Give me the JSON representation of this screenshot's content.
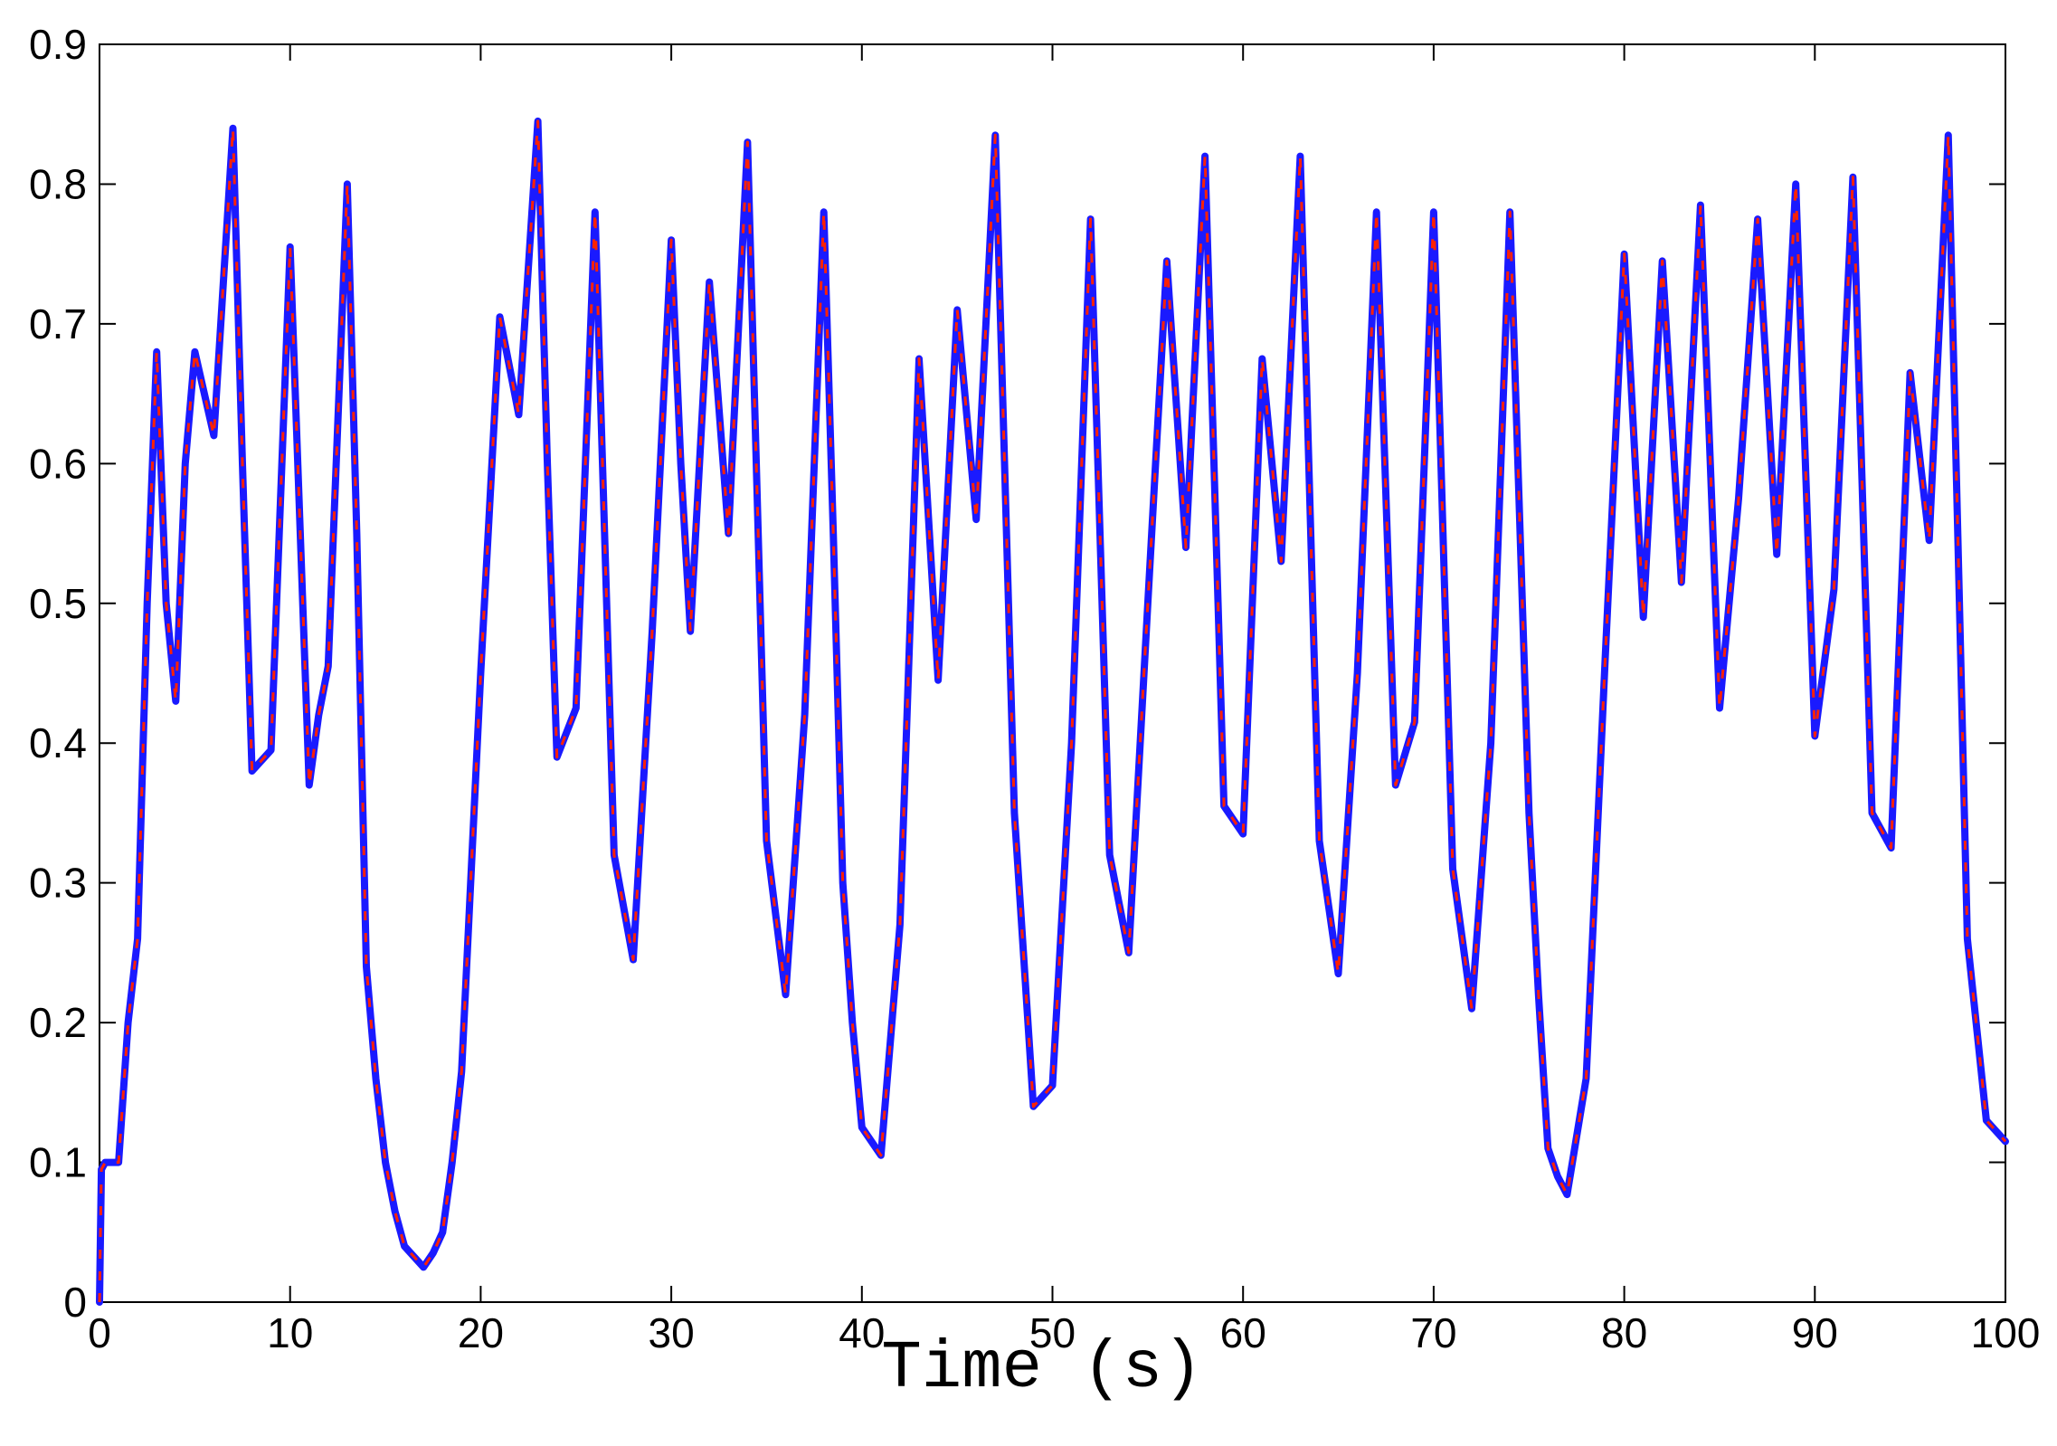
{
  "chart_data": {
    "type": "line",
    "title": "",
    "xlabel": "Time (s)",
    "ylabel": "",
    "xlim": [
      0,
      100
    ],
    "ylim": [
      0,
      0.9
    ],
    "grid": false,
    "legend": "none",
    "x_ticks": [
      "0",
      "10",
      "20",
      "30",
      "40",
      "50",
      "60",
      "70",
      "80",
      "90",
      "100"
    ],
    "y_ticks": [
      "0",
      "0.1",
      "0.2",
      "0.3",
      "0.4",
      "0.5",
      "0.6",
      "0.7",
      "0.8",
      "0.9"
    ],
    "colors": {
      "series_solid": "#1a1aff",
      "series_dashed": "#ff2200",
      "axes": "#000000",
      "background": "#ffffff"
    },
    "x": [
      0,
      0.1,
      0.3,
      1,
      1.5,
      2,
      2.5,
      3,
      3.5,
      4,
      4.5,
      5,
      6,
      7,
      7.5,
      8,
      9,
      10,
      11,
      11.5,
      12,
      13,
      13.5,
      14,
      14.5,
      15,
      15.5,
      16,
      17,
      17.5,
      18,
      18.5,
      19,
      20,
      21,
      22,
      23,
      23.5,
      24,
      25,
      26,
      27,
      28,
      29,
      30,
      30.5,
      31,
      32,
      33,
      34,
      35,
      36,
      37,
      38,
      38.5,
      39,
      39.5,
      40,
      41,
      42,
      43,
      44,
      45,
      46,
      47,
      48,
      49,
      50,
      51,
      52,
      53,
      54,
      55,
      56,
      57,
      58,
      59,
      60,
      61,
      62,
      63,
      64,
      65,
      66,
      67,
      68,
      69,
      70,
      71,
      72,
      73,
      74,
      75,
      75.5,
      76,
      76.5,
      77,
      78,
      79,
      80,
      81,
      82,
      83,
      84,
      85,
      86,
      87,
      88,
      89,
      90,
      91,
      92,
      93,
      94,
      95,
      96,
      97,
      97.5,
      98,
      99,
      100
    ],
    "series": [
      {
        "values": [
          0,
          0.095,
          0.1,
          0.1,
          0.2,
          0.26,
          0.5,
          0.68,
          0.5,
          0.43,
          0.6,
          0.68,
          0.62,
          0.84,
          0.6,
          0.38,
          0.395,
          0.755,
          0.37,
          0.42,
          0.455,
          0.8,
          0.55,
          0.24,
          0.16,
          0.1,
          0.065,
          0.04,
          0.025,
          0.035,
          0.05,
          0.1,
          0.165,
          0.45,
          0.705,
          0.635,
          0.845,
          0.6,
          0.39,
          0.425,
          0.78,
          0.32,
          0.245,
          0.48,
          0.76,
          0.6,
          0.48,
          0.73,
          0.55,
          0.83,
          0.33,
          0.22,
          0.42,
          0.78,
          0.55,
          0.3,
          0.2,
          0.125,
          0.105,
          0.27,
          0.675,
          0.445,
          0.71,
          0.56,
          0.835,
          0.35,
          0.14,
          0.155,
          0.4,
          0.775,
          0.32,
          0.25,
          0.5,
          0.745,
          0.54,
          0.82,
          0.355,
          0.335,
          0.675,
          0.53,
          0.82,
          0.33,
          0.235,
          0.45,
          0.78,
          0.37,
          0.415,
          0.78,
          0.31,
          0.21,
          0.4,
          0.78,
          0.35,
          0.22,
          0.11,
          0.09,
          0.077,
          0.16,
          0.46,
          0.75,
          0.49,
          0.745,
          0.515,
          0.785,
          0.425,
          0.575,
          0.775,
          0.535,
          0.8,
          0.405,
          0.51,
          0.805,
          0.35,
          0.325,
          0.665,
          0.545,
          0.835,
          0.55,
          0.26,
          0.13,
          0.115
        ]
      }
    ]
  }
}
